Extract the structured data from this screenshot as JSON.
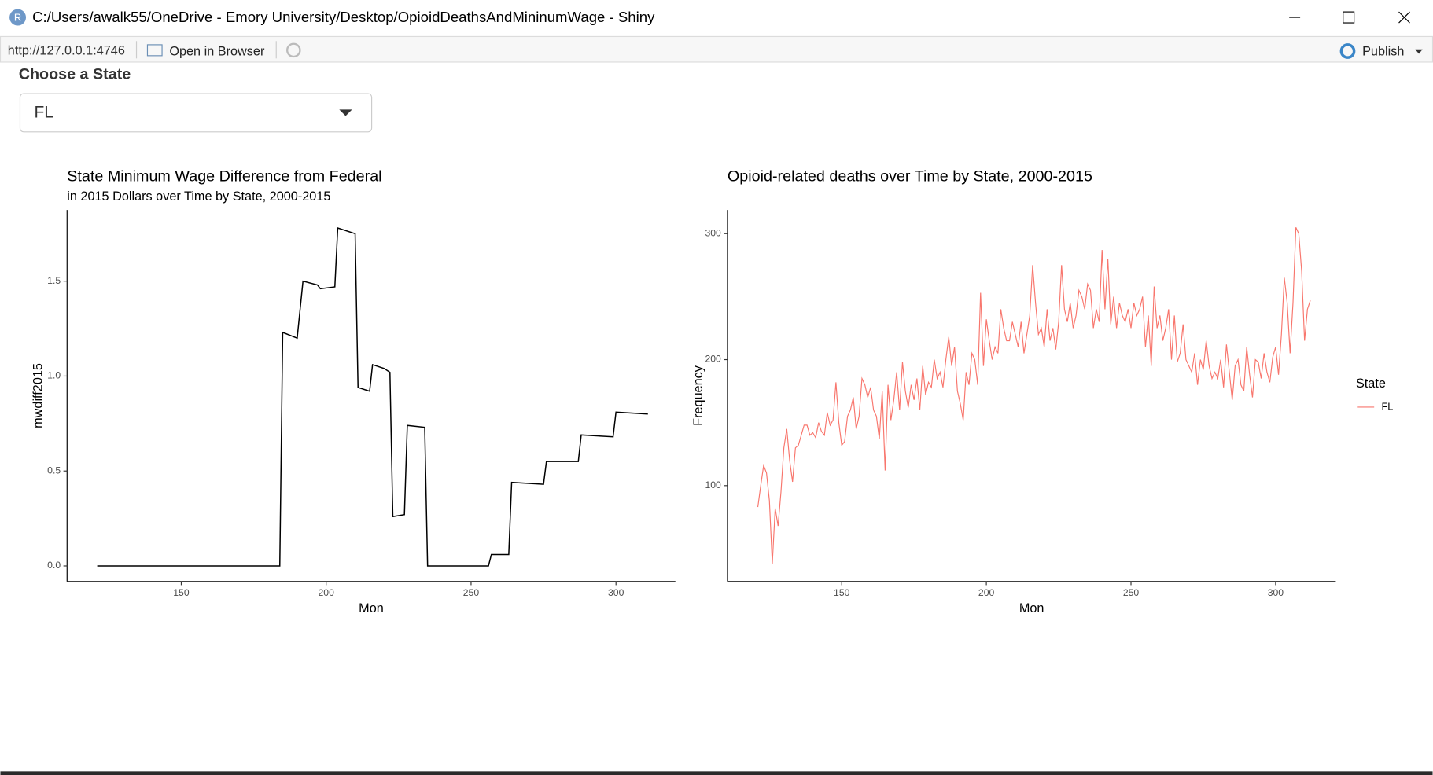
{
  "window": {
    "title": "C:/Users/awalk55/OneDrive - Emory University/Desktop/OpioidDeathsAndMininumWage - Shiny",
    "url": "http://127.0.0.1:4746",
    "open_in_browser": "Open in Browser",
    "publish": "Publish"
  },
  "input": {
    "label": "Choose a State",
    "selected": "FL"
  },
  "chart_data": [
    {
      "type": "line",
      "title": "State Minimum Wage Difference from Federal",
      "subtitle": "in 2015 Dollars over Time by State, 2000-2015",
      "x_label": "Mon",
      "y_label": "mwdiff2015",
      "color": "#000000",
      "x": [
        121,
        184,
        185,
        190,
        192,
        197,
        198,
        203,
        204,
        210,
        211,
        215,
        216,
        220,
        222,
        223,
        227,
        228,
        234,
        235,
        256,
        257,
        263,
        264,
        275,
        276,
        287,
        288,
        299,
        300,
        311
      ],
      "values": [
        0,
        0,
        1.23,
        1.2,
        1.5,
        1.48,
        1.46,
        1.47,
        1.78,
        1.75,
        0.94,
        0.92,
        1.06,
        1.04,
        1.02,
        0.26,
        0.27,
        0.74,
        0.73,
        0,
        0,
        0.06,
        0.06,
        0.44,
        0.43,
        0.55,
        0.55,
        0.69,
        0.68,
        0.81,
        0.8
      ],
      "xlim": [
        110.6,
        320.5
      ],
      "ylim": [
        -0.082,
        1.875
      ],
      "xticks": [
        150,
        200,
        250,
        300
      ],
      "yticks": [
        {
          "value": 0,
          "label": "0.0"
        },
        {
          "value": 0.5,
          "label": "0.5"
        },
        {
          "value": 1,
          "label": "1.0"
        },
        {
          "value": 1.5,
          "label": "1.5"
        }
      ]
    },
    {
      "type": "line",
      "title": "Opioid-related deaths over Time by State, 2000-2015",
      "x_label": "Mon",
      "y_label": "Frequency",
      "legend_title": "State",
      "x": [
        121,
        122,
        123,
        124,
        125,
        126,
        127,
        128,
        129,
        130,
        131,
        132,
        133,
        134,
        135,
        136,
        137,
        138,
        139,
        140,
        141,
        142,
        143,
        144,
        145,
        146,
        147,
        148,
        149,
        150,
        151,
        152,
        153,
        154,
        155,
        156,
        157,
        158,
        159,
        160,
        161,
        162,
        163,
        164,
        165,
        166,
        167,
        168,
        169,
        170,
        171,
        172,
        173,
        174,
        175,
        176,
        177,
        178,
        179,
        180,
        181,
        182,
        183,
        184,
        185,
        186,
        187,
        188,
        189,
        190,
        191,
        192,
        193,
        194,
        195,
        196,
        197,
        198,
        199,
        200,
        201,
        202,
        203,
        204,
        205,
        206,
        207,
        208,
        209,
        210,
        211,
        212,
        213,
        214,
        215,
        216,
        217,
        218,
        219,
        220,
        221,
        222,
        223,
        224,
        225,
        226,
        227,
        228,
        229,
        230,
        231,
        232,
        233,
        234,
        235,
        236,
        237,
        238,
        239,
        240,
        241,
        242,
        243,
        244,
        245,
        246,
        247,
        248,
        249,
        250,
        251,
        252,
        253,
        254,
        255,
        256,
        257,
        258,
        259,
        260,
        261,
        262,
        263,
        264,
        265,
        266,
        267,
        268,
        269,
        270,
        271,
        272,
        273,
        274,
        275,
        276,
        277,
        278,
        279,
        280,
        281,
        282,
        283,
        284,
        285,
        286,
        287,
        288,
        289,
        290,
        291,
        292,
        293,
        294,
        295,
        296,
        297,
        298,
        299,
        300,
        301,
        302,
        303,
        304,
        305,
        306,
        307,
        308,
        309,
        310,
        311,
        312
      ],
      "series": [
        {
          "name": "FL",
          "color": "#F8766D",
          "values": [
            83,
            100,
            116,
            110,
            88,
            38,
            82,
            68,
            95,
            130,
            145,
            120,
            103,
            130,
            132,
            140,
            148,
            148,
            140,
            142,
            138,
            150,
            143,
            140,
            158,
            148,
            152,
            182,
            150,
            132,
            135,
            155,
            160,
            170,
            145,
            155,
            185,
            180,
            170,
            178,
            160,
            155,
            137,
            175,
            112,
            180,
            152,
            168,
            190,
            160,
            198,
            175,
            162,
            180,
            168,
            185,
            160,
            195,
            172,
            182,
            178,
            200,
            185,
            190,
            178,
            200,
            218,
            195,
            210,
            175,
            165,
            152,
            190,
            180,
            205,
            200,
            180,
            253,
            195,
            232,
            215,
            200,
            210,
            205,
            240,
            225,
            215,
            215,
            230,
            220,
            210,
            230,
            205,
            220,
            235,
            275,
            245,
            220,
            225,
            210,
            240,
            215,
            225,
            208,
            230,
            275,
            240,
            230,
            245,
            225,
            235,
            255,
            250,
            240,
            260,
            255,
            225,
            240,
            230,
            287,
            240,
            280,
            228,
            250,
            225,
            245,
            235,
            230,
            240,
            225,
            245,
            235,
            240,
            250,
            210,
            235,
            195,
            258,
            225,
            235,
            215,
            225,
            240,
            200,
            235,
            198,
            205,
            228,
            200,
            195,
            190,
            205,
            180,
            200,
            192,
            215,
            195,
            185,
            190,
            185,
            200,
            178,
            212,
            190,
            168,
            195,
            200,
            180,
            175,
            210,
            188,
            170,
            200,
            198,
            185,
            205,
            190,
            182,
            202,
            210,
            188,
            220,
            265,
            245,
            205,
            245,
            305,
            300,
            270,
            215,
            240,
            247
          ]
        }
      ],
      "xlim": [
        110.5,
        320.8
      ],
      "ylim": [
        23.9,
        318.8
      ],
      "xticks": [
        150,
        200,
        250,
        300
      ],
      "yticks": [
        100,
        200,
        300
      ]
    }
  ]
}
